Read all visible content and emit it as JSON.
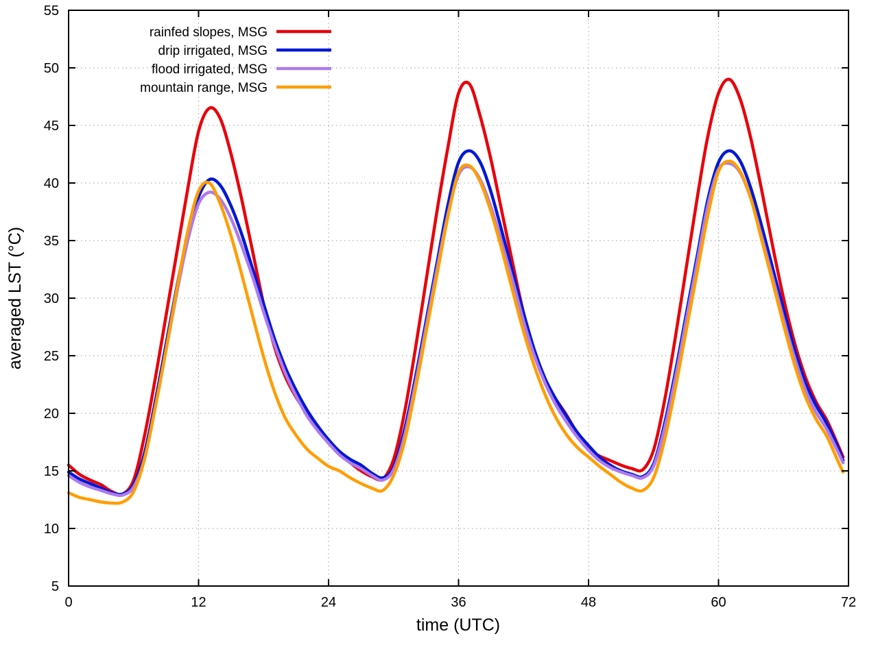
{
  "chart_data": {
    "type": "line",
    "title": "",
    "xlabel": "time (UTC)",
    "ylabel": "averaged LST (°C)",
    "xlim": [
      0,
      72
    ],
    "ylim": [
      5,
      55
    ],
    "xticks": [
      0,
      12,
      24,
      36,
      48,
      60,
      72
    ],
    "yticks": [
      5,
      10,
      15,
      20,
      25,
      30,
      35,
      40,
      45,
      50,
      55
    ],
    "grid": "dotted",
    "legend_position": "top-left-inside",
    "x": [
      0,
      1,
      2,
      3,
      4,
      5,
      6,
      7,
      8,
      9,
      10,
      11,
      12,
      13,
      14,
      15,
      16,
      17,
      18,
      19,
      20,
      21,
      22,
      23,
      24,
      25,
      26,
      27,
      28,
      29,
      30,
      31,
      32,
      33,
      34,
      35,
      36,
      37,
      38,
      39,
      40,
      41,
      42,
      43,
      44,
      45,
      46,
      47,
      48,
      49,
      50,
      51,
      52,
      53,
      54,
      55,
      56,
      57,
      58,
      59,
      60,
      61,
      62,
      63,
      64,
      65,
      66,
      67,
      68,
      69,
      70,
      71,
      71.5
    ],
    "series": [
      {
        "name": "rainfed slopes, MSG",
        "color": "#e8000a",
        "values": [
          15.5,
          14.7,
          14.2,
          13.8,
          13.2,
          13.0,
          14.2,
          18.0,
          23.0,
          28.5,
          34.0,
          39.5,
          44.5,
          46.5,
          45.6,
          42.5,
          38.5,
          34.0,
          29.5,
          25.8,
          23.2,
          21.4,
          20.0,
          18.8,
          17.7,
          16.6,
          15.7,
          15.0,
          14.5,
          14.3,
          16.0,
          20.0,
          25.5,
          31.5,
          37.5,
          43.0,
          47.8,
          48.6,
          45.8,
          42.0,
          37.5,
          33.0,
          28.7,
          25.2,
          22.7,
          21.2,
          19.8,
          18.2,
          16.9,
          16.3,
          15.9,
          15.5,
          15.2,
          15.1,
          16.8,
          21.0,
          26.5,
          32.5,
          38.5,
          44.0,
          47.8,
          49.0,
          47.3,
          43.8,
          39.3,
          34.5,
          30.0,
          26.2,
          23.2,
          21.0,
          19.4,
          17.3,
          16.2
        ]
      },
      {
        "name": "drip irrigated, MSG",
        "color": "#0018d5",
        "values": [
          14.9,
          14.3,
          13.9,
          13.5,
          13.1,
          13.0,
          13.8,
          16.5,
          21.0,
          26.0,
          31.0,
          35.5,
          38.8,
          40.3,
          39.8,
          38.0,
          35.5,
          32.5,
          29.5,
          26.5,
          24.0,
          22.0,
          20.3,
          18.9,
          17.7,
          16.7,
          16.0,
          15.5,
          14.8,
          14.4,
          15.3,
          18.5,
          23.0,
          28.0,
          33.0,
          38.0,
          41.8,
          42.8,
          41.8,
          39.2,
          35.8,
          32.2,
          28.7,
          25.5,
          23.0,
          21.2,
          19.7,
          18.3,
          17.2,
          16.2,
          15.5,
          15.0,
          14.7,
          14.5,
          15.6,
          19.0,
          23.5,
          28.5,
          33.5,
          38.5,
          41.8,
          42.8,
          41.9,
          39.5,
          36.2,
          32.6,
          29.0,
          25.6,
          22.7,
          20.7,
          19.1,
          17.1,
          15.9
        ]
      },
      {
        "name": "flood irrigated, MSG",
        "color": "#ad7bec",
        "values": [
          14.6,
          14.0,
          13.6,
          13.3,
          13.0,
          12.9,
          13.6,
          16.0,
          20.5,
          25.5,
          30.5,
          35.0,
          38.2,
          39.2,
          38.6,
          36.9,
          34.5,
          31.8,
          28.8,
          26.0,
          23.5,
          21.5,
          19.8,
          18.5,
          17.4,
          16.4,
          15.7,
          15.2,
          14.6,
          14.2,
          15.1,
          18.0,
          22.5,
          27.5,
          32.5,
          37.2,
          40.7,
          41.4,
          40.3,
          37.9,
          34.8,
          31.5,
          28.0,
          25.0,
          22.6,
          20.7,
          19.2,
          17.9,
          16.8,
          15.9,
          15.3,
          14.9,
          14.6,
          14.4,
          15.4,
          18.6,
          23.0,
          28.0,
          33.0,
          38.0,
          41.2,
          41.7,
          40.9,
          38.6,
          35.3,
          31.8,
          28.2,
          24.9,
          22.1,
          20.1,
          18.6,
          16.7,
          15.7
        ]
      },
      {
        "name": "mountain range, MSG",
        "color": "#ff9e00",
        "values": [
          13.1,
          12.7,
          12.5,
          12.3,
          12.2,
          12.3,
          13.2,
          16.0,
          20.5,
          25.5,
          30.8,
          35.8,
          39.3,
          40.0,
          38.2,
          35.4,
          32.0,
          28.4,
          24.9,
          21.9,
          19.6,
          18.1,
          16.9,
          16.1,
          15.4,
          15.0,
          14.4,
          13.9,
          13.5,
          13.3,
          14.6,
          17.5,
          22.0,
          27.0,
          32.0,
          37.0,
          40.9,
          41.5,
          40.1,
          37.5,
          34.2,
          30.6,
          27.1,
          24.1,
          21.6,
          19.6,
          18.1,
          17.0,
          16.2,
          15.4,
          14.7,
          14.0,
          13.5,
          13.3,
          14.4,
          17.6,
          22.1,
          27.1,
          32.1,
          37.1,
          41.0,
          41.9,
          41.0,
          38.6,
          35.0,
          31.4,
          27.7,
          24.3,
          21.5,
          19.5,
          18.0,
          15.9,
          14.9
        ]
      }
    ],
    "style": {
      "grid_color": "#9a9a9a",
      "border_color": "#000000",
      "line_width": 4.5
    }
  }
}
